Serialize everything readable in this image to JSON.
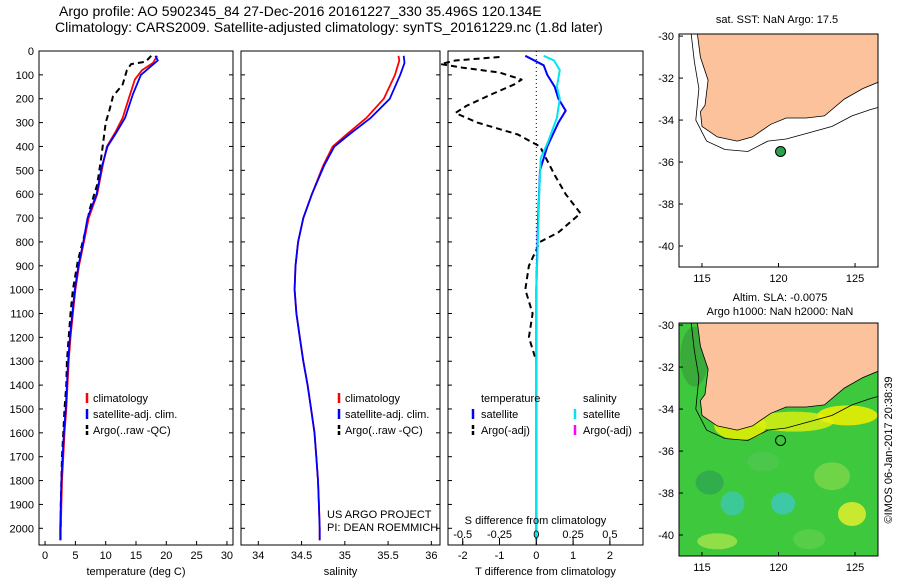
{
  "header": {
    "line1": "Argo profile: AO 5902345_84 27-Dec-2016 20161227_330 35.496S 120.134E",
    "line2": "Climatology: CARS2009. Satellite-adjusted climatology: synTS_20161229.nc (1.8d later)"
  },
  "colors": {
    "clim": "#ff0000",
    "sat": "#0000ff",
    "argo": "#000000",
    "sal_sat": "#00e5ee",
    "sal_argo": "#ff00ff",
    "land": "#fcc29c"
  },
  "chart_data": [
    {
      "name": "temperature",
      "type": "line",
      "xlabel": "temperature (deg C)",
      "ylabel": "",
      "xlim": [
        -1,
        31
      ],
      "ylim": [
        2070,
        0
      ],
      "xticks": [
        "0",
        "5",
        "10",
        "15",
        "20",
        "25",
        "30"
      ],
      "yticks": [
        "0",
        "100",
        "200",
        "300",
        "400",
        "500",
        "600",
        "700",
        "800",
        "900",
        "1000",
        "1100",
        "1200",
        "1300",
        "1400",
        "1500",
        "1600",
        "1700",
        "1800",
        "1900",
        "2000"
      ],
      "legend": [
        "climatology",
        "satellite-adj. clim.",
        "Argo(..raw -QC)"
      ],
      "series": [
        {
          "name": "climatology",
          "points": [
            [
              18.5,
              20
            ],
            [
              17.8,
              50
            ],
            [
              16,
              80
            ],
            [
              14.8,
              120
            ],
            [
              13.8,
              200
            ],
            [
              12.8,
              280
            ],
            [
              11.6,
              340
            ],
            [
              10.2,
              400
            ],
            [
              9.5,
              480
            ],
            [
              8.6,
              600
            ],
            [
              7.2,
              700
            ],
            [
              6.4,
              800
            ],
            [
              5.6,
              900
            ],
            [
              5.0,
              1000
            ],
            [
              4.6,
              1100
            ],
            [
              4.2,
              1200
            ],
            [
              3.9,
              1300
            ],
            [
              3.7,
              1400
            ],
            [
              3.5,
              1500
            ],
            [
              3.2,
              1600
            ],
            [
              3.0,
              1700
            ],
            [
              2.8,
              1800
            ],
            [
              2.7,
              1900
            ],
            [
              2.6,
              2000
            ],
            [
              2.6,
              2050
            ]
          ]
        },
        {
          "name": "satellite-adj. clim.",
          "points": [
            [
              18.2,
              20
            ],
            [
              18.6,
              40
            ],
            [
              17.2,
              70
            ],
            [
              15.8,
              100
            ],
            [
              14.5,
              180
            ],
            [
              13.2,
              280
            ],
            [
              11.8,
              340
            ],
            [
              10.3,
              400
            ],
            [
              9.4,
              480
            ],
            [
              8.5,
              600
            ],
            [
              7.0,
              700
            ],
            [
              6.3,
              800
            ],
            [
              5.5,
              900
            ],
            [
              4.9,
              1000
            ],
            [
              4.5,
              1100
            ],
            [
              4.1,
              1200
            ],
            [
              3.8,
              1300
            ],
            [
              3.6,
              1400
            ],
            [
              3.4,
              1500
            ],
            [
              3.1,
              1600
            ],
            [
              2.9,
              1700
            ],
            [
              2.7,
              1800
            ],
            [
              2.6,
              1900
            ],
            [
              2.5,
              2000
            ],
            [
              2.5,
              2050
            ]
          ]
        },
        {
          "name": "Argo(..raw -QC)",
          "points": [
            [
              17.5,
              20
            ],
            [
              16.6,
              45
            ],
            [
              14.2,
              55
            ],
            [
              13.5,
              80
            ],
            [
              12.8,
              140
            ],
            [
              11.2,
              190
            ],
            [
              10.6,
              250
            ],
            [
              10.0,
              300
            ],
            [
              9.6,
              380
            ],
            [
              9.2,
              460
            ],
            [
              8.6,
              560
            ],
            [
              7.4,
              660
            ],
            [
              6.6,
              760
            ],
            [
              5.4,
              880
            ],
            [
              4.6,
              1000
            ],
            [
              4.2,
              1100
            ],
            [
              3.9,
              1200
            ],
            [
              3.6,
              1300
            ],
            [
              3.5,
              1400
            ],
            [
              3.2,
              1500
            ],
            [
              3.0,
              1600
            ],
            [
              2.8,
              1700
            ],
            [
              2.7,
              1800
            ],
            [
              2.6,
              1900
            ],
            [
              2.6,
              2000
            ]
          ]
        }
      ]
    },
    {
      "name": "salinity",
      "type": "line",
      "xlabel": "salinity",
      "ylabel": "",
      "xlim": [
        33.8,
        36.1
      ],
      "ylim": [
        2070,
        0
      ],
      "xticks": [
        "34",
        "34.5",
        "35",
        "35.5",
        "36"
      ],
      "legend": [
        "climatology",
        "satellite-adj. clim.",
        "Argo(..raw -QC)"
      ],
      "annotation": [
        "US ARGO PROJECT",
        "PI: DEAN ROEMMICH"
      ],
      "series": [
        {
          "name": "climatology",
          "points": [
            [
              35.62,
              20
            ],
            [
              35.63,
              40
            ],
            [
              35.58,
              100
            ],
            [
              35.45,
              200
            ],
            [
              35.25,
              280
            ],
            [
              35.02,
              350
            ],
            [
              34.86,
              400
            ],
            [
              34.75,
              480
            ],
            [
              34.62,
              600
            ],
            [
              34.52,
              700
            ],
            [
              34.46,
              800
            ],
            [
              34.43,
              900
            ],
            [
              34.42,
              1000
            ],
            [
              34.44,
              1100
            ],
            [
              34.48,
              1200
            ],
            [
              34.52,
              1300
            ],
            [
              34.57,
              1400
            ],
            [
              34.61,
              1500
            ],
            [
              34.65,
              1600
            ],
            [
              34.67,
              1700
            ],
            [
              34.69,
              1800
            ],
            [
              34.7,
              1900
            ],
            [
              34.71,
              2000
            ],
            [
              34.71,
              2050
            ]
          ]
        },
        {
          "name": "satellite-adj. clim.",
          "points": [
            [
              35.68,
              20
            ],
            [
              35.69,
              50
            ],
            [
              35.64,
              100
            ],
            [
              35.52,
              200
            ],
            [
              35.3,
              280
            ],
            [
              35.05,
              350
            ],
            [
              34.88,
              400
            ],
            [
              34.76,
              480
            ],
            [
              34.62,
              600
            ],
            [
              34.52,
              700
            ],
            [
              34.46,
              800
            ],
            [
              34.43,
              900
            ],
            [
              34.42,
              1000
            ],
            [
              34.44,
              1100
            ],
            [
              34.48,
              1200
            ],
            [
              34.52,
              1300
            ],
            [
              34.57,
              1400
            ],
            [
              34.61,
              1500
            ],
            [
              34.65,
              1600
            ],
            [
              34.67,
              1700
            ],
            [
              34.69,
              1800
            ],
            [
              34.7,
              1900
            ],
            [
              34.71,
              2000
            ],
            [
              34.71,
              2050
            ]
          ]
        }
      ]
    },
    {
      "name": "difference",
      "type": "line",
      "xlabel": "T difference from climatology",
      "xlabel_top": "S difference from climatology",
      "xlim": [
        -2.4,
        2.9
      ],
      "ylim": [
        2070,
        0
      ],
      "xticks": [
        "-2",
        "-1",
        "0",
        "1",
        "2"
      ],
      "xticks_top": [
        "-0.5",
        "-0.25",
        "0",
        "0.25",
        "0.5"
      ],
      "legend_titles": [
        "temperature",
        "salinity"
      ],
      "legend": [
        "satellite",
        "Argo(-adj)",
        "satellite",
        "Argo(-adj)"
      ],
      "series": [
        {
          "name": "T satellite",
          "points": [
            [
              -0.3,
              20
            ],
            [
              0.2,
              60
            ],
            [
              0.3,
              100
            ],
            [
              0.5,
              150
            ],
            [
              0.6,
              200
            ],
            [
              0.8,
              250
            ],
            [
              0.6,
              300
            ],
            [
              0.3,
              400
            ],
            [
              0.1,
              500
            ],
            [
              0.05,
              700
            ],
            [
              0,
              1000
            ],
            [
              0,
              1500
            ],
            [
              0,
              2000
            ],
            [
              0,
              2050
            ]
          ]
        },
        {
          "name": "T Argo(-adj)",
          "points": [
            [
              -1.0,
              25
            ],
            [
              -2.2,
              40
            ],
            [
              -2.6,
              55
            ],
            [
              -2.0,
              70
            ],
            [
              -1.0,
              90
            ],
            [
              -0.4,
              120
            ],
            [
              -0.6,
              140
            ],
            [
              -1.2,
              180
            ],
            [
              -1.9,
              230
            ],
            [
              -2.2,
              260
            ],
            [
              -1.6,
              300
            ],
            [
              -0.5,
              350
            ],
            [
              0.1,
              400
            ],
            [
              0.5,
              520
            ],
            [
              0.8,
              600
            ],
            [
              1.2,
              680
            ],
            [
              0.6,
              760
            ],
            [
              0.1,
              800
            ],
            [
              -0.2,
              900
            ],
            [
              -0.3,
              1000
            ],
            [
              -0.1,
              1100
            ],
            [
              -0.2,
              1200
            ],
            [
              0.0,
              1300
            ]
          ]
        },
        {
          "name": "S satellite",
          "points": [
            [
              0.05,
              20
            ],
            [
              0.12,
              40
            ],
            [
              0.16,
              80
            ],
            [
              0.14,
              150
            ],
            [
              0.16,
              200
            ],
            [
              0.14,
              280
            ],
            [
              0.08,
              380
            ],
            [
              0.03,
              450
            ],
            [
              0.02,
              600
            ],
            [
              0.01,
              800
            ],
            [
              0.0,
              1000
            ],
            [
              0.0,
              1500
            ],
            [
              0.0,
              2000
            ],
            [
              0.0,
              2050
            ]
          ]
        }
      ]
    },
    {
      "name": "sst-map",
      "type": "map",
      "title": "sat. SST: NaN Argo: 17.5",
      "xlim": [
        113.5,
        126.5
      ],
      "ylim": [
        -41,
        -29.9
      ],
      "xticks": [
        "115",
        "120",
        "125"
      ],
      "yticks": [
        "-30",
        "-32",
        "-34",
        "-36",
        "-38",
        "-40"
      ],
      "argo_position": {
        "lon": 120.134,
        "lat": -35.496
      }
    },
    {
      "name": "sla-map",
      "type": "heatmap",
      "title_line1": "Altim. SLA: -0.0075",
      "title_line2": "Argo h1000: NaN h2000: NaN",
      "xlim": [
        113.5,
        126.5
      ],
      "ylim": [
        -41,
        -29.9
      ],
      "xticks": [
        "115",
        "120",
        "125"
      ],
      "yticks": [
        "-30",
        "-32",
        "-34",
        "-36",
        "-38",
        "-40"
      ],
      "argo_position": {
        "lon": 120.134,
        "lat": -35.496
      }
    }
  ],
  "footer_credit": "©IMOS 06-Jan-2017 20:38:39"
}
